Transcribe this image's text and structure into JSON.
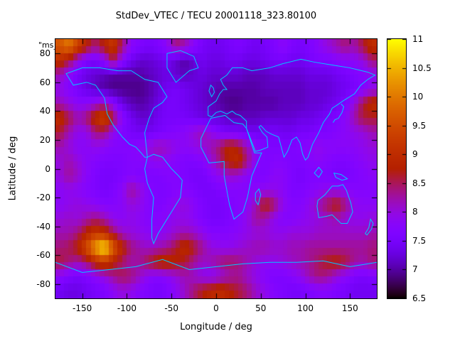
{
  "overlay_label": "\"ms_",
  "chart_data": {
    "type": "heatmap",
    "title": "StdDev_VTEC / TECU 20001118_323.80100",
    "xlabel": "Longitude / deg",
    "ylabel": "Latitude / deg",
    "x_range": [
      -180,
      180
    ],
    "y_range": [
      -90,
      90
    ],
    "x_ticks": [
      -150,
      -100,
      -50,
      0,
      50,
      100,
      150
    ],
    "y_ticks": [
      -80,
      -60,
      -40,
      -20,
      0,
      20,
      40,
      60,
      80
    ],
    "grid": {
      "lon_start": -180,
      "lon_step": 10,
      "lat_start": 90,
      "lat_step": -10
    },
    "colorbar": {
      "min": 6.5,
      "max": 11,
      "ticks": [
        6.5,
        7,
        7.5,
        8,
        8.5,
        9,
        9.5,
        10,
        10.5,
        11
      ],
      "palette": "pm3d-black-purple-red-yellow"
    },
    "coastline_color": "#00c8ff",
    "values": [
      [
        9.6,
        10.0,
        9.4,
        8.8,
        8.4,
        8.8,
        9.2,
        8.4,
        7.8,
        7.6,
        7.5,
        7.6,
        7.8,
        8.4,
        8.2,
        7.8,
        7.5,
        7.4,
        7.4,
        7.5,
        7.6,
        7.5,
        7.4,
        7.5,
        7.6,
        7.8,
        7.6,
        7.5,
        7.6,
        7.8,
        8.0,
        8.2,
        8.4,
        8.2,
        8.6,
        9.0
      ],
      [
        9.0,
        8.6,
        8.0,
        7.6,
        7.5,
        7.8,
        8.6,
        7.8,
        7.4,
        7.2,
        7.2,
        7.3,
        7.4,
        7.2,
        7.0,
        7.2,
        7.4,
        7.3,
        7.3,
        7.4,
        7.4,
        7.3,
        7.3,
        7.4,
        7.5,
        7.5,
        7.4,
        7.4,
        7.5,
        7.6,
        7.6,
        7.7,
        7.8,
        7.8,
        8.0,
        8.4
      ],
      [
        8.2,
        7.8,
        7.5,
        7.3,
        7.2,
        7.1,
        7.0,
        7.0,
        7.0,
        7.0,
        7.1,
        7.2,
        7.3,
        7.2,
        7.1,
        7.2,
        7.3,
        7.2,
        7.2,
        7.2,
        7.2,
        7.1,
        7.1,
        7.1,
        7.2,
        7.2,
        7.2,
        7.2,
        7.3,
        7.3,
        7.3,
        7.4,
        7.5,
        7.6,
        7.7,
        7.9
      ],
      [
        7.9,
        7.7,
        7.5,
        7.3,
        7.1,
        7.0,
        6.9,
        6.9,
        6.9,
        6.9,
        7.0,
        7.2,
        7.4,
        7.5,
        7.4,
        7.3,
        7.2,
        7.1,
        7.0,
        7.0,
        7.0,
        7.0,
        7.0,
        7.1,
        7.1,
        7.1,
        7.1,
        7.1,
        7.2,
        7.2,
        7.2,
        7.3,
        7.4,
        7.5,
        7.7,
        7.9
      ],
      [
        8.2,
        8.0,
        7.8,
        7.8,
        8.0,
        8.2,
        7.8,
        7.3,
        7.1,
        7.0,
        7.1,
        7.3,
        7.5,
        7.5,
        7.4,
        7.3,
        7.2,
        7.1,
        7.0,
        6.9,
        6.9,
        7.0,
        7.0,
        7.0,
        7.0,
        7.1,
        7.1,
        7.1,
        7.2,
        7.2,
        7.3,
        7.4,
        7.6,
        8.0,
        8.6,
        9.0
      ],
      [
        9.0,
        8.6,
        8.2,
        8.4,
        9.0,
        9.4,
        8.6,
        7.8,
        7.4,
        7.2,
        7.2,
        7.4,
        7.5,
        7.5,
        7.5,
        7.4,
        7.3,
        7.2,
        7.2,
        7.1,
        7.1,
        7.1,
        7.1,
        7.2,
        7.2,
        7.2,
        7.2,
        7.3,
        7.3,
        7.4,
        7.5,
        7.6,
        7.8,
        8.2,
        8.6,
        8.6
      ],
      [
        8.6,
        8.2,
        7.9,
        7.9,
        8.4,
        8.4,
        7.9,
        7.6,
        7.5,
        7.4,
        7.4,
        7.5,
        7.6,
        7.7,
        7.8,
        8.0,
        8.2,
        7.9,
        7.6,
        7.5,
        7.5,
        7.4,
        7.4,
        7.4,
        7.5,
        7.4,
        7.4,
        7.5,
        7.5,
        7.6,
        7.6,
        7.7,
        7.8,
        7.9,
        8.0,
        8.2
      ],
      [
        8.2,
        8.0,
        7.8,
        7.8,
        7.9,
        7.8,
        7.7,
        7.7,
        7.7,
        7.8,
        8.0,
        8.2,
        8.1,
        7.9,
        7.8,
        7.9,
        8.0,
        8.2,
        8.5,
        8.9,
        8.7,
        8.2,
        7.8,
        7.6,
        7.6,
        7.6,
        7.6,
        7.7,
        7.8,
        7.9,
        7.8,
        7.8,
        7.8,
        7.8,
        7.9,
        8.0
      ],
      [
        8.0,
        8.2,
        8.0,
        7.8,
        7.7,
        7.6,
        7.6,
        7.6,
        7.7,
        7.7,
        7.8,
        7.9,
        7.8,
        7.7,
        7.6,
        7.6,
        7.7,
        8.0,
        8.4,
        8.8,
        9.0,
        8.4,
        7.8,
        7.6,
        7.7,
        7.7,
        7.6,
        7.6,
        7.7,
        7.8,
        7.7,
        7.6,
        7.6,
        7.7,
        7.8,
        7.9
      ],
      [
        8.0,
        8.3,
        8.1,
        7.8,
        7.6,
        7.5,
        7.5,
        7.6,
        7.7,
        7.6,
        7.6,
        7.6,
        7.7,
        7.7,
        7.6,
        7.5,
        7.5,
        7.7,
        7.9,
        8.1,
        8.0,
        7.8,
        7.6,
        7.6,
        7.8,
        7.8,
        7.6,
        7.5,
        7.6,
        7.6,
        7.6,
        7.5,
        7.5,
        7.6,
        7.7,
        7.8
      ],
      [
        7.8,
        7.9,
        7.8,
        7.7,
        7.6,
        7.5,
        7.6,
        7.8,
        8.3,
        8.0,
        7.7,
        7.6,
        7.6,
        7.7,
        7.7,
        7.6,
        7.5,
        7.5,
        7.6,
        7.7,
        7.7,
        7.7,
        7.8,
        7.9,
        7.9,
        7.8,
        7.6,
        7.6,
        7.7,
        7.8,
        7.9,
        7.9,
        7.8,
        7.7,
        7.7,
        7.7
      ],
      [
        7.8,
        7.9,
        8.0,
        7.9,
        7.8,
        7.7,
        7.7,
        7.8,
        8.0,
        7.9,
        7.7,
        7.6,
        7.7,
        7.9,
        8.0,
        7.8,
        7.6,
        7.5,
        7.5,
        7.6,
        7.7,
        7.8,
        8.2,
        8.8,
        8.5,
        7.9,
        7.7,
        7.7,
        7.9,
        8.2,
        8.5,
        8.8,
        8.4,
        7.9,
        7.8,
        7.8
      ],
      [
        8.0,
        8.1,
        8.0,
        8.2,
        8.4,
        8.2,
        7.9,
        7.8,
        7.9,
        7.8,
        7.7,
        7.7,
        7.8,
        7.9,
        7.9,
        7.8,
        7.6,
        7.5,
        7.5,
        7.6,
        7.7,
        7.9,
        8.3,
        8.2,
        7.9,
        7.7,
        7.7,
        7.8,
        7.9,
        8.0,
        8.1,
        8.2,
        8.0,
        7.9,
        7.9,
        8.0
      ],
      [
        8.2,
        8.2,
        8.4,
        8.8,
        9.2,
        9.0,
        8.5,
        8.1,
        8.0,
        7.9,
        7.8,
        7.8,
        7.9,
        8.1,
        8.2,
        8.1,
        7.9,
        7.7,
        7.7,
        7.7,
        7.8,
        7.9,
        8.0,
        8.0,
        7.9,
        7.9,
        8.0,
        8.0,
        8.0,
        8.1,
        8.1,
        8.1,
        8.1,
        8.1,
        8.1,
        8.2
      ],
      [
        8.4,
        8.5,
        8.8,
        9.5,
        10.4,
        11.0,
        9.8,
        8.9,
        8.4,
        8.2,
        8.1,
        8.2,
        8.3,
        8.6,
        9.0,
        8.7,
        8.3,
        8.0,
        7.9,
        7.9,
        8.0,
        8.1,
        8.2,
        8.2,
        8.1,
        8.1,
        8.2,
        8.2,
        8.3,
        8.3,
        8.3,
        8.3,
        8.3,
        8.3,
        8.3,
        8.4
      ],
      [
        8.6,
        8.4,
        8.2,
        8.4,
        8.9,
        9.2,
        8.8,
        8.4,
        8.2,
        8.3,
        8.6,
        8.9,
        9.0,
        8.8,
        8.6,
        8.3,
        8.1,
        8.2,
        8.4,
        8.5,
        8.4,
        8.2,
        8.0,
        7.9,
        7.9,
        8.0,
        8.1,
        8.2,
        8.3,
        8.5,
        8.7,
        8.8,
        8.6,
        8.3,
        8.2,
        8.4
      ],
      [
        7.8,
        7.6,
        7.5,
        7.6,
        7.8,
        8.0,
        8.3,
        8.5,
        8.4,
        8.1,
        7.8,
        7.7,
        7.8,
        8.0,
        8.2,
        8.1,
        7.9,
        7.8,
        8.0,
        8.2,
        8.3,
        8.1,
        7.9,
        7.7,
        7.6,
        7.6,
        7.7,
        7.9,
        8.2,
        8.4,
        8.3,
        8.0,
        7.8,
        7.6,
        7.5,
        7.6
      ],
      [
        7.4,
        7.3,
        7.3,
        7.4,
        7.5,
        7.6,
        7.8,
        8.0,
        7.9,
        7.7,
        7.6,
        7.5,
        7.6,
        7.8,
        8.1,
        8.4,
        8.7,
        8.9,
        9.0,
        8.8,
        8.6,
        8.4,
        8.1,
        7.9,
        7.7,
        7.6,
        7.5,
        7.5,
        7.6,
        7.7,
        7.7,
        7.6,
        7.5,
        7.4,
        7.4,
        7.4
      ]
    ]
  }
}
